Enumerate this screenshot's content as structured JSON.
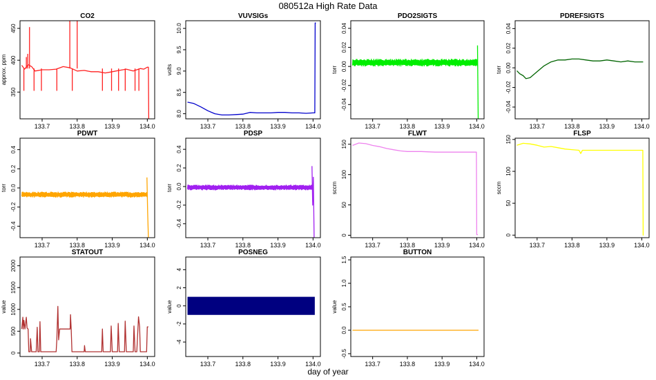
{
  "figure": {
    "title": "080512a   High Rate Data",
    "xlabel": "day of year"
  },
  "chart_data": [
    {
      "type": "line",
      "title": "CO2",
      "ylabel": "approx. ppm",
      "color": "#ff2020",
      "xlim": [
        133.637,
        134.021
      ],
      "ylim": [
        308,
        462
      ],
      "xticks": [
        133.7,
        133.8,
        133.9,
        134.0
      ],
      "xtick_labels": [
        "133.7",
        "133.8",
        "133.9",
        "134.0"
      ],
      "yticks": [
        350,
        400,
        450
      ],
      "ytick_labels": [
        "350",
        "400",
        "450"
      ],
      "spikes": [
        {
          "x": 133.648,
          "y": 352
        },
        {
          "x": 133.655,
          "y": 405
        },
        {
          "x": 133.659,
          "y": 410
        },
        {
          "x": 133.664,
          "y": 452
        },
        {
          "x": 133.677,
          "y": 352
        },
        {
          "x": 133.698,
          "y": 352
        },
        {
          "x": 133.742,
          "y": 352
        },
        {
          "x": 133.779,
          "y": 462
        },
        {
          "x": 133.786,
          "y": 352
        },
        {
          "x": 133.8,
          "y": 462
        },
        {
          "x": 133.872,
          "y": 352
        },
        {
          "x": 133.898,
          "y": 352
        },
        {
          "x": 133.918,
          "y": 352
        },
        {
          "x": 133.937,
          "y": 352
        },
        {
          "x": 133.965,
          "y": 352
        },
        {
          "x": 133.976,
          "y": 352
        }
      ],
      "x": [
        133.642,
        133.65,
        133.66,
        133.67,
        133.68,
        133.7,
        133.72,
        133.74,
        133.76,
        133.78,
        133.8,
        133.82,
        133.84,
        133.86,
        133.88,
        133.9,
        133.92,
        133.94,
        133.96,
        133.98,
        133.99,
        134.0,
        134.003,
        134.004
      ],
      "y": [
        392,
        386,
        393,
        390,
        383,
        385,
        385,
        386,
        390,
        388,
        383,
        384,
        382,
        382,
        380,
        382,
        384,
        386,
        383,
        387,
        386,
        389,
        389,
        308
      ]
    },
    {
      "type": "line",
      "title": "VUVSIGs",
      "ylabel": "volts",
      "color": "#0000cc",
      "xlim": [
        133.637,
        134.021
      ],
      "ylim": [
        7.88,
        10.18
      ],
      "xticks": [
        133.7,
        133.8,
        133.9,
        134.0
      ],
      "xtick_labels": [
        "133.7",
        "133.8",
        "133.9",
        "134.0"
      ],
      "yticks": [
        8.0,
        8.5,
        9.0,
        9.5,
        10.0
      ],
      "ytick_labels": [
        "8.0",
        "8.5",
        "9.0",
        "9.5",
        "10.0"
      ],
      "x": [
        133.642,
        133.66,
        133.68,
        133.7,
        133.72,
        133.74,
        133.76,
        133.78,
        133.8,
        133.82,
        133.84,
        133.86,
        133.88,
        133.9,
        133.92,
        133.94,
        133.96,
        133.98,
        134.0,
        134.005,
        134.006,
        134.008
      ],
      "y": [
        8.27,
        8.24,
        8.16,
        8.07,
        8.0,
        7.97,
        7.97,
        7.98,
        7.99,
        8.03,
        8.02,
        8.02,
        8.02,
        8.03,
        8.03,
        8.02,
        8.02,
        8.01,
        8.02,
        8.02,
        10.13,
        10.12
      ]
    },
    {
      "type": "line",
      "title": "PDO2SIGTS",
      "ylabel": "torr",
      "color": "#00ee00",
      "xlim": [
        133.637,
        134.021
      ],
      "ylim": [
        -0.055,
        0.048
      ],
      "xticks": [
        133.7,
        133.8,
        133.9,
        134.0
      ],
      "xtick_labels": [
        "133.7",
        "133.8",
        "133.9",
        "134.0"
      ],
      "yticks": [
        -0.04,
        -0.02,
        0.0,
        0.02,
        0.04
      ],
      "ytick_labels": [
        "-0.04",
        "-0.02",
        "0.00",
        "0.02",
        "0.04"
      ],
      "band": {
        "x_start": 133.642,
        "x_end": 134.002,
        "center": 0.004,
        "halfwidth": 0.004
      },
      "x": [
        134.002,
        134.004
      ],
      "y": [
        0.022,
        -0.055
      ]
    },
    {
      "type": "line",
      "title": "PDREFSIGTS",
      "ylabel": "torr",
      "color": "#006400",
      "xlim": [
        133.637,
        134.021
      ],
      "ylim": [
        -0.052,
        0.048
      ],
      "xticks": [
        133.7,
        133.8,
        133.9,
        134.0
      ],
      "xtick_labels": [
        "133.7",
        "133.8",
        "133.9",
        "134.0"
      ],
      "yticks": [
        -0.04,
        -0.02,
        0.0,
        0.02,
        0.04
      ],
      "ytick_labels": [
        "-0.04",
        "-0.02",
        "0.00",
        "0.02",
        "0.04"
      ],
      "x": [
        133.642,
        133.65,
        133.66,
        133.668,
        133.68,
        133.7,
        133.72,
        133.74,
        133.76,
        133.78,
        133.8,
        133.82,
        133.84,
        133.86,
        133.88,
        133.9,
        133.92,
        133.94,
        133.96,
        133.98,
        134.0,
        134.004
      ],
      "y": [
        -0.003,
        -0.006,
        -0.008,
        -0.011,
        -0.01,
        -0.004,
        0.002,
        0.006,
        0.008,
        0.008,
        0.009,
        0.009,
        0.008,
        0.007,
        0.007,
        0.008,
        0.007,
        0.006,
        0.007,
        0.006,
        0.006,
        0.006
      ]
    },
    {
      "type": "line",
      "title": "PDWT",
      "ylabel": "torr",
      "color": "#ffa500",
      "xlim": [
        133.637,
        134.021
      ],
      "ylim": [
        -0.52,
        0.52
      ],
      "xticks": [
        133.7,
        133.8,
        133.9,
        134.0
      ],
      "xtick_labels": [
        "133.7",
        "133.8",
        "133.9",
        "134.0"
      ],
      "yticks": [
        -0.4,
        -0.2,
        0.0,
        0.2,
        0.4
      ],
      "ytick_labels": [
        "-0.4",
        "-0.2",
        "0.0",
        "0.2",
        "0.4"
      ],
      "band": {
        "x_start": 133.642,
        "x_end": 133.999,
        "center": -0.07,
        "halfwidth": 0.03
      },
      "x": [
        133.999,
        134.001,
        134.003
      ],
      "y": [
        0.11,
        -0.25,
        -0.52
      ]
    },
    {
      "type": "line",
      "title": "PDSP",
      "ylabel": "torr",
      "color": "#a020f0",
      "xlim": [
        133.637,
        134.021
      ],
      "ylim": [
        -0.55,
        0.52
      ],
      "xticks": [
        133.7,
        133.8,
        133.9,
        134.0
      ],
      "xtick_labels": [
        "133.7",
        "133.8",
        "133.9",
        "134.0"
      ],
      "yticks": [
        -0.4,
        -0.2,
        0.0,
        0.2,
        0.4
      ],
      "ytick_labels": [
        "-0.4",
        "-0.2",
        "0.0",
        "0.2",
        "0.4"
      ],
      "band": {
        "x_start": 133.642,
        "x_end": 133.998,
        "center": -0.01,
        "halfwidth": 0.03
      },
      "x": [
        133.997,
        133.999,
        134.001,
        134.003
      ],
      "y": [
        0.22,
        -0.2,
        0.1,
        -0.55
      ]
    },
    {
      "type": "line",
      "title": "FLWT",
      "ylabel": "sccm",
      "color": "#ee82ee",
      "xlim": [
        133.637,
        134.021
      ],
      "ylim": [
        -4,
        160
      ],
      "xticks": [
        133.7,
        133.8,
        133.9,
        134.0
      ],
      "xtick_labels": [
        "133.7",
        "133.8",
        "133.9",
        "134.0"
      ],
      "yticks": [
        0,
        50,
        100,
        150
      ],
      "ytick_labels": [
        "0",
        "50",
        "100",
        "150"
      ],
      "x": [
        133.642,
        133.66,
        133.68,
        133.7,
        133.72,
        133.74,
        133.76,
        133.78,
        133.8,
        133.84,
        133.88,
        133.92,
        133.96,
        133.999,
        134.0,
        134.003
      ],
      "y": [
        148,
        152,
        151,
        148,
        146,
        143,
        141,
        139,
        138,
        138,
        137,
        137,
        137,
        137,
        1,
        1
      ]
    },
    {
      "type": "line",
      "title": "FLSP",
      "ylabel": "sccm",
      "color": "#ffff00",
      "xlim": [
        133.637,
        134.021
      ],
      "ylim": [
        -4,
        152
      ],
      "xticks": [
        133.7,
        133.8,
        133.9,
        134.0
      ],
      "xtick_labels": [
        "133.7",
        "133.8",
        "133.9",
        "134.0"
      ],
      "yticks": [
        0,
        50,
        100,
        150
      ],
      "ytick_labels": [
        "0",
        "50",
        "100",
        "150"
      ],
      "x": [
        133.642,
        133.66,
        133.68,
        133.7,
        133.72,
        133.74,
        133.76,
        133.78,
        133.8,
        133.82,
        133.825,
        133.83,
        133.84,
        133.86,
        133.88,
        133.9,
        133.92,
        133.96,
        134.003,
        134.004,
        134.005
      ],
      "y": [
        141,
        144,
        143,
        141,
        138,
        139,
        137,
        135,
        134,
        133,
        128,
        133,
        133,
        133,
        133,
        133,
        133,
        133,
        133,
        0,
        0
      ]
    },
    {
      "type": "line",
      "title": "STATOUT",
      "ylabel": "value",
      "color": "#b03030",
      "xlim": [
        133.637,
        134.021
      ],
      "ylim": [
        -80,
        2200
      ],
      "xticks": [
        133.7,
        133.8,
        133.9,
        134.0
      ],
      "xtick_labels": [
        "133.7",
        "133.8",
        "133.9",
        "134.0"
      ],
      "yticks": [
        0,
        500,
        1000,
        1500,
        2000
      ],
      "ytick_labels": [
        "0",
        "500",
        "1000",
        "1500",
        "2000"
      ],
      "x": [
        133.642,
        133.645,
        133.646,
        133.648,
        133.651,
        133.655,
        133.657,
        133.66,
        133.662,
        133.666,
        133.667,
        133.67,
        133.68,
        133.683,
        133.686,
        133.688,
        133.692,
        133.694,
        133.696,
        133.7,
        133.72,
        133.74,
        133.742,
        133.745,
        133.747,
        133.75,
        133.755,
        133.78,
        133.781,
        133.783,
        133.785,
        133.79,
        133.8,
        133.82,
        133.821,
        133.823,
        133.825,
        133.84,
        133.86,
        133.87,
        133.872,
        133.874,
        133.88,
        133.895,
        133.897,
        133.9,
        133.915,
        133.917,
        133.92,
        133.935,
        133.937,
        133.94,
        133.96,
        133.962,
        133.965,
        133.97,
        133.975,
        133.978,
        133.98,
        133.995,
        133.998,
        134.0,
        134.003
      ],
      "y": [
        550,
        820,
        550,
        750,
        550,
        820,
        570,
        550,
        30,
        30,
        330,
        30,
        30,
        30,
        590,
        30,
        30,
        720,
        30,
        30,
        30,
        30,
        300,
        1070,
        300,
        550,
        550,
        550,
        880,
        550,
        30,
        30,
        30,
        30,
        170,
        30,
        30,
        30,
        30,
        30,
        550,
        30,
        30,
        30,
        620,
        30,
        30,
        680,
        30,
        30,
        730,
        30,
        30,
        620,
        30,
        30,
        830,
        600,
        30,
        30,
        30,
        600,
        600
      ]
    },
    {
      "type": "area",
      "title": "POSNEG",
      "ylabel": "value",
      "color": "#000080",
      "xlim": [
        133.637,
        134.021
      ],
      "ylim": [
        -5.6,
        5.4
      ],
      "xticks": [
        133.7,
        133.8,
        133.9,
        134.0
      ],
      "xtick_labels": [
        "133.7",
        "133.8",
        "133.9",
        "134.0"
      ],
      "yticks": [
        -4,
        -2,
        0,
        2,
        4
      ],
      "ytick_labels": [
        "-4",
        "-2",
        "0",
        "2",
        "4"
      ],
      "x": [
        133.642,
        134.005
      ],
      "upper": [
        1,
        1
      ],
      "lower": [
        -1,
        -1
      ]
    },
    {
      "type": "line",
      "title": "BUTTON",
      "ylabel": "value",
      "color": "#ffa500",
      "xlim": [
        133.637,
        134.021
      ],
      "ylim": [
        -0.56,
        1.56
      ],
      "xticks": [
        133.7,
        133.8,
        133.9,
        134.0
      ],
      "xtick_labels": [
        "133.7",
        "133.8",
        "133.9",
        "134.0"
      ],
      "yticks": [
        -0.5,
        0.0,
        0.5,
        1.0,
        1.5
      ],
      "ytick_labels": [
        "-0.5",
        "0.0",
        "0.5",
        "1.0",
        "1.5"
      ],
      "x": [
        133.642,
        134.005
      ],
      "y": [
        0,
        0
      ]
    }
  ]
}
